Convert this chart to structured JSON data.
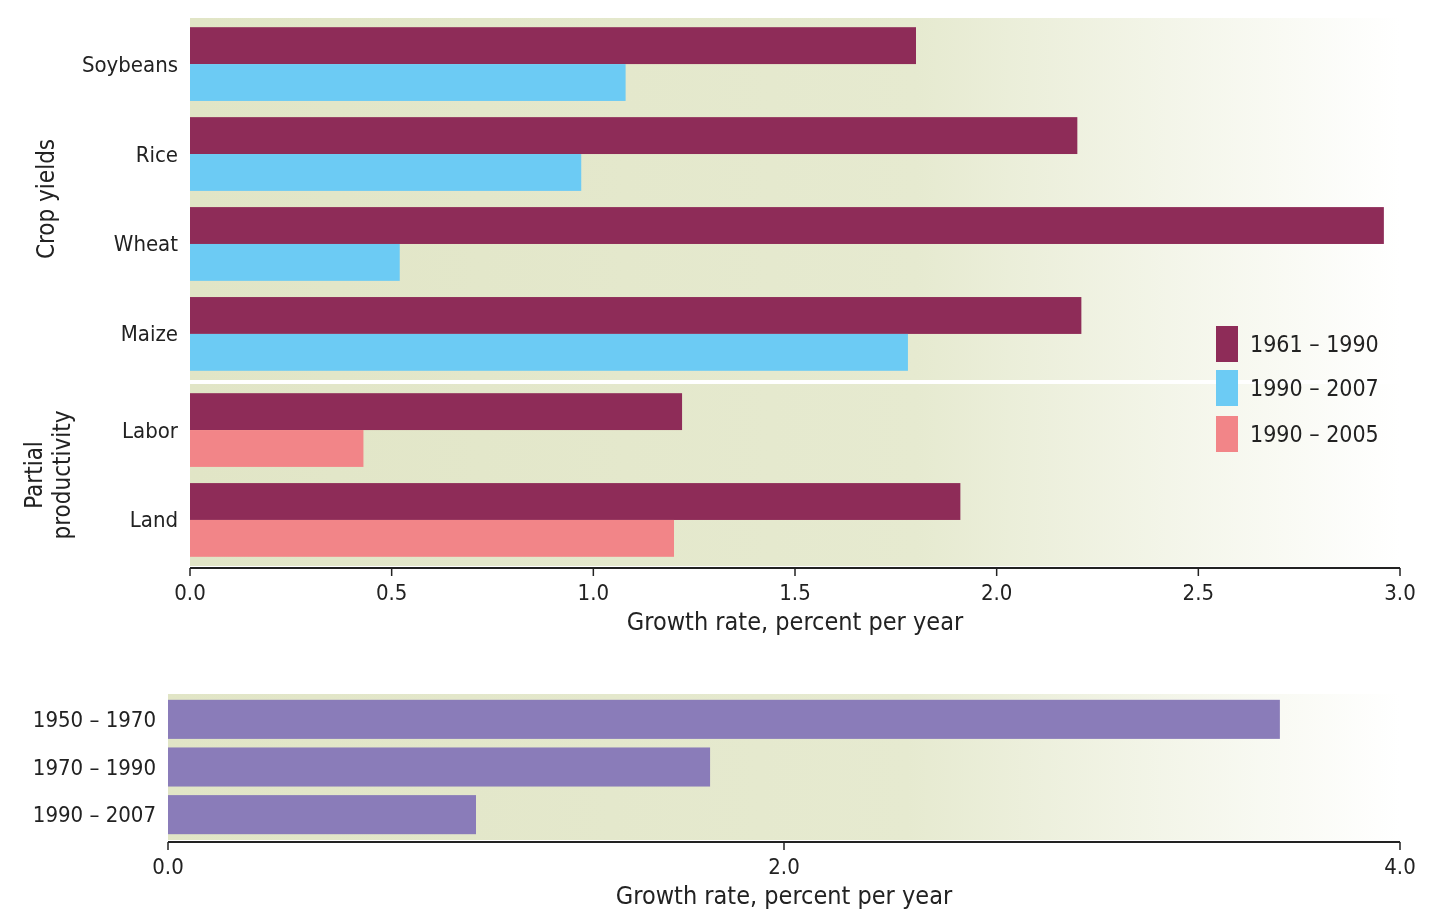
{
  "chart_data": [
    {
      "type": "bar",
      "orientation": "horizontal",
      "ylabel": "Crop yields",
      "categories": [
        "Soybeans",
        "Rice",
        "Wheat",
        "Maize"
      ],
      "xlim": [
        0,
        3
      ],
      "tick_labels": "y",
      "legend": "bottom right",
      "series": [
        {
          "name": "1961 – 1990",
          "color": "#8e2c58",
          "values": [
            1.8,
            2.2,
            2.96,
            2.21
          ]
        },
        {
          "name": "1990 – 2007",
          "color": "#6ccbf4",
          "values": [
            1.08,
            0.97,
            0.52,
            1.78
          ]
        }
      ]
    },
    {
      "type": "bar",
      "orientation": "horizontal",
      "ylabel": "Partial productivity",
      "xlabel": "Growth rate, percent per year",
      "categories": [
        "Labor",
        "Land"
      ],
      "xlim": [
        0,
        3
      ],
      "xticks": [
        {
          "value": 0,
          "label": "0.0"
        },
        {
          "value": 0.5,
          "label": "0.5"
        },
        {
          "value": 1,
          "label": "1.0"
        },
        {
          "value": 1.5,
          "label": "1.5"
        },
        {
          "value": 2,
          "label": "2.0"
        },
        {
          "value": 2.5,
          "label": "2.5"
        },
        {
          "value": 3,
          "label": "3.0"
        }
      ],
      "legend": "top right",
      "series": [
        {
          "name": "1961 – 1990",
          "color": "#8e2c58",
          "values": [
            1.22,
            1.91
          ]
        },
        {
          "name": "1990 – 2005",
          "color": "#f28588",
          "values": [
            0.43,
            1.2
          ]
        }
      ]
    },
    {
      "type": "bar",
      "orientation": "horizontal",
      "xlabel": "Growth rate, percent per year",
      "categories": [
        "1950 – 1970",
        "1970 – 1990",
        "1990 – 2007"
      ],
      "xlim": [
        0,
        4
      ],
      "xticks": [
        {
          "value": 0,
          "label": "0.0"
        },
        {
          "value": 2,
          "label": "2.0"
        },
        {
          "value": 4,
          "label": "4.0"
        }
      ],
      "series": [
        {
          "color": "#8a7cb9",
          "values": [
            3.61,
            1.76,
            1.0
          ]
        }
      ]
    }
  ]
}
